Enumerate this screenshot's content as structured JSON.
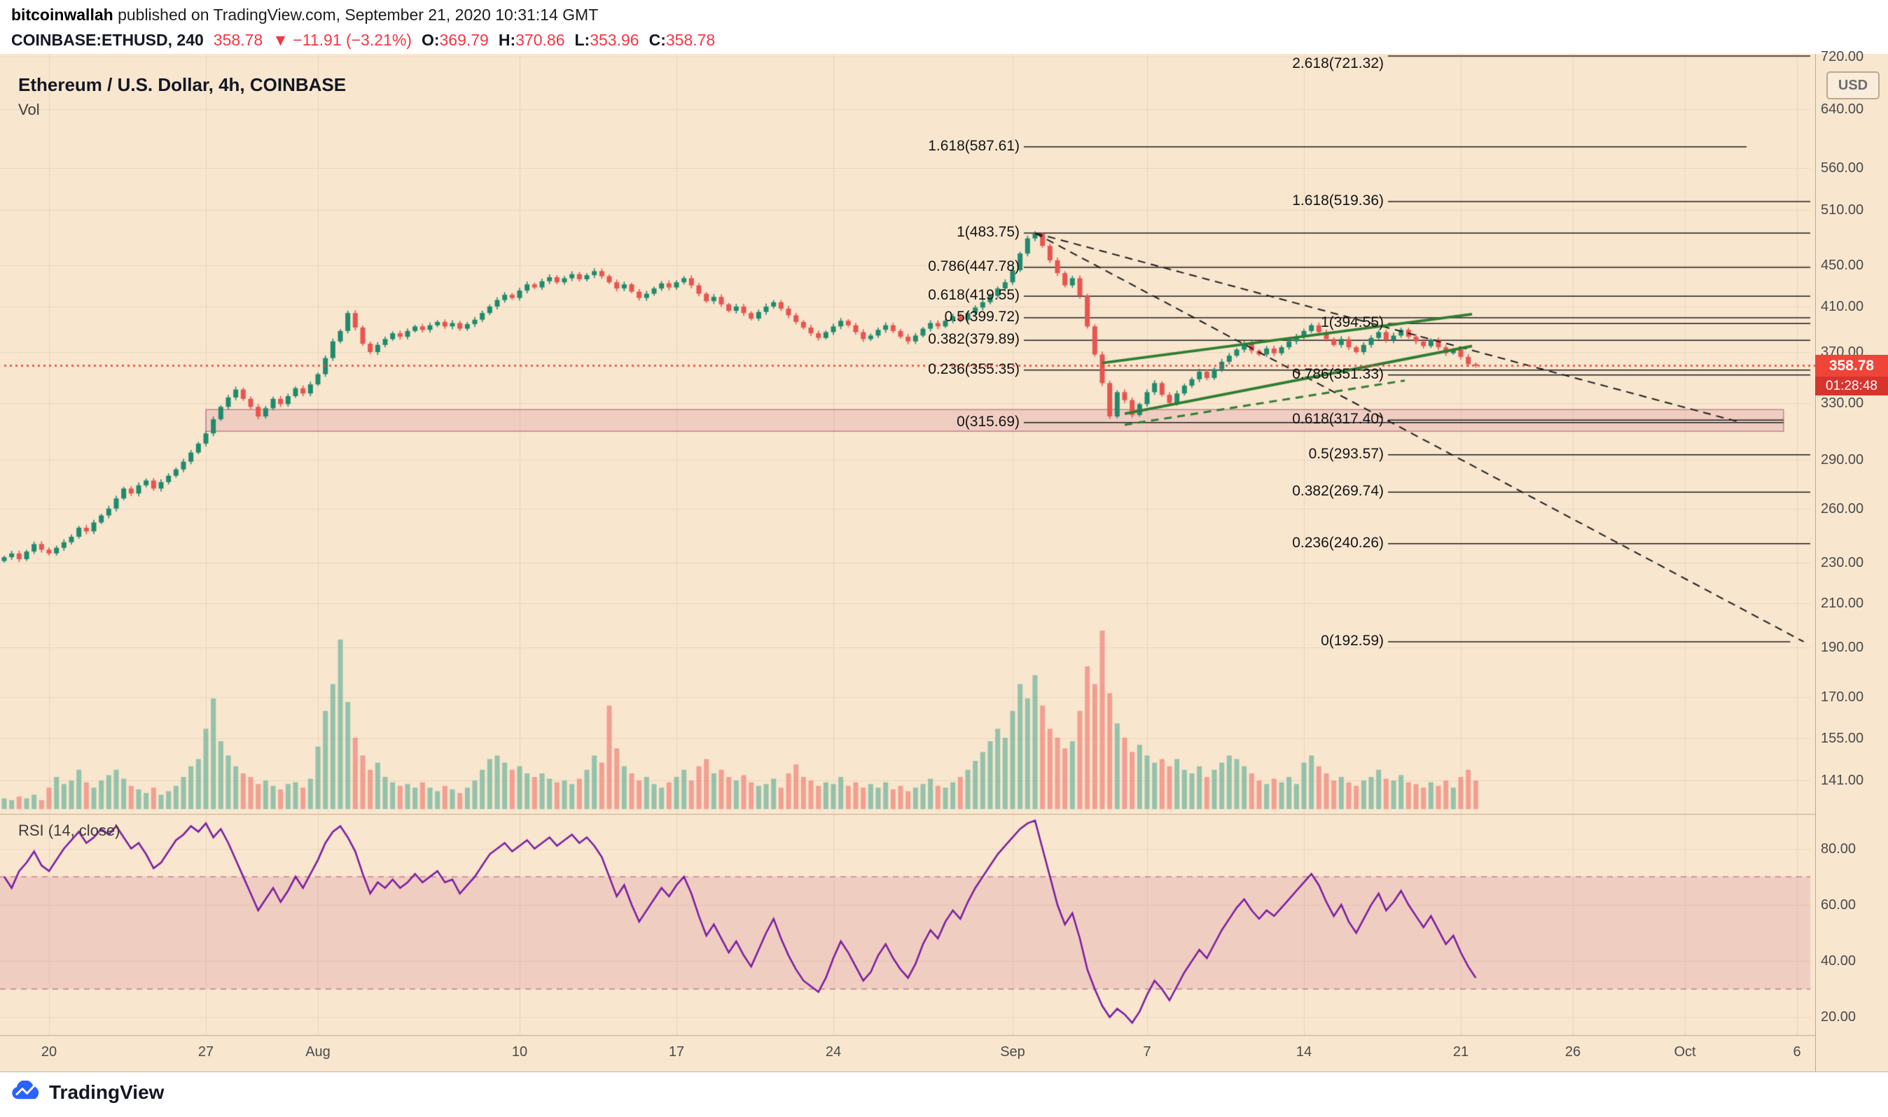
{
  "header": {
    "author": "bitcoinwallah",
    "published": " published on TradingView.com, September 21, 2020 10:31:14 GMT",
    "symbol": "COINBASE:ETHUSD, 240",
    "last": "358.78",
    "change": "▼ −11.91 (−3.21%)",
    "ohlc": [
      {
        "label": "O:",
        "value": "369.79"
      },
      {
        "label": "H:",
        "value": "370.86"
      },
      {
        "label": "L:",
        "value": "353.96"
      },
      {
        "label": "C:",
        "value": "358.78"
      }
    ]
  },
  "legend": {
    "title": "Ethereum / U.S. Dollar, 4h, COINBASE",
    "vol": "Vol",
    "rsi": "RSI (14, close)"
  },
  "axis": {
    "currency_button": "USD",
    "price_ticks": [
      "720.00",
      "640.00",
      "560.00",
      "510.00",
      "450.00",
      "410.00",
      "370.00",
      "330.00",
      "290.00",
      "260.00",
      "230.00",
      "210.00",
      "190.00",
      "170.00",
      "155.00",
      "141.00"
    ],
    "rsi_ticks": [
      "80.00",
      "60.00",
      "40.00",
      "20.00"
    ],
    "time_ticks": [
      {
        "label": "20",
        "t": 2
      },
      {
        "label": "27",
        "t": 9
      },
      {
        "label": "Aug",
        "t": 14
      },
      {
        "label": "10",
        "t": 23
      },
      {
        "label": "17",
        "t": 30
      },
      {
        "label": "24",
        "t": 37
      },
      {
        "label": "Sep",
        "t": 45
      },
      {
        "label": "7",
        "t": 51
      },
      {
        "label": "14",
        "t": 58
      },
      {
        "label": "21",
        "t": 65
      },
      {
        "label": "26",
        "t": 70
      },
      {
        "label": "Oct",
        "t": 75
      },
      {
        "label": "6",
        "t": 80
      }
    ]
  },
  "price_label": {
    "value": "358.78",
    "countdown": "01:28:48"
  },
  "footer": {
    "brand": "TradingView"
  },
  "chart_data": {
    "type": "candlestick",
    "title": "Ethereum / U.S. Dollar, 4h, COINBASE",
    "symbol": "ETHUSD",
    "interval": "4h",
    "scale": "log",
    "price_axis_range": [
      141,
      720
    ],
    "rsi_axis_range": [
      20,
      80
    ],
    "start_date": "2020-07-18",
    "end_date": "2020-09-21",
    "points_per_day": 3,
    "last_price": 358.78,
    "close_path": [
      233,
      235,
      232,
      236,
      240,
      237,
      235,
      238,
      241,
      244,
      249,
      247,
      252,
      256,
      260,
      266,
      272,
      269,
      274,
      277,
      272,
      276,
      280,
      284,
      289,
      295,
      301,
      308,
      318,
      327,
      334,
      340,
      333,
      327,
      320,
      326,
      333,
      329,
      335,
      341,
      337,
      344,
      352,
      365,
      379,
      388,
      404,
      391,
      377,
      370,
      376,
      381,
      386,
      383,
      388,
      392,
      389,
      393,
      396,
      392,
      395,
      390,
      394,
      398,
      404,
      410,
      416,
      421,
      418,
      425,
      431,
      428,
      434,
      438,
      433,
      437,
      441,
      436,
      440,
      444,
      439,
      433,
      427,
      431,
      424,
      418,
      422,
      427,
      432,
      428,
      433,
      437,
      430,
      422,
      415,
      419,
      412,
      406,
      410,
      404,
      399,
      405,
      410,
      414,
      408,
      402,
      396,
      391,
      386,
      382,
      387,
      392,
      397,
      393,
      387,
      381,
      384,
      389,
      393,
      388,
      383,
      379,
      384,
      390,
      395,
      392,
      397,
      401,
      398,
      404,
      409,
      414,
      420,
      427,
      433,
      445,
      462,
      478,
      483,
      470,
      455,
      442,
      430,
      437,
      420,
      392,
      368,
      345,
      320,
      338,
      332,
      321,
      329,
      338,
      345,
      336,
      330,
      337,
      343,
      348,
      354,
      349,
      356,
      362,
      367,
      372,
      377,
      371,
      368,
      373,
      369,
      374,
      379,
      383,
      388,
      393,
      387,
      381,
      376,
      381,
      374,
      370,
      376,
      382,
      387,
      380,
      384,
      389,
      383,
      379,
      375,
      380,
      374,
      369,
      372,
      366,
      360,
      358.78
    ],
    "volume": [
      6,
      5,
      7,
      6,
      8,
      5,
      12,
      18,
      14,
      16,
      22,
      15,
      12,
      16,
      19,
      22,
      17,
      13,
      11,
      9,
      12,
      8,
      10,
      13,
      18,
      24,
      28,
      45,
      62,
      38,
      30,
      24,
      20,
      18,
      14,
      16,
      13,
      11,
      14,
      15,
      12,
      17,
      35,
      55,
      70,
      95,
      60,
      40,
      30,
      22,
      26,
      18,
      15,
      13,
      14,
      12,
      15,
      12,
      10,
      13,
      11,
      9,
      12,
      16,
      22,
      28,
      30,
      26,
      22,
      24,
      20,
      18,
      20,
      17,
      15,
      16,
      14,
      17,
      22,
      30,
      26,
      58,
      34,
      24,
      20,
      16,
      18,
      14,
      12,
      15,
      18,
      22,
      16,
      24,
      28,
      20,
      22,
      18,
      16,
      19,
      15,
      13,
      14,
      17,
      12,
      20,
      25,
      18,
      16,
      13,
      15,
      14,
      18,
      13,
      15,
      12,
      14,
      12,
      15,
      11,
      13,
      10,
      12,
      14,
      17,
      13,
      12,
      15,
      18,
      22,
      27,
      32,
      38,
      45,
      40,
      55,
      70,
      62,
      75,
      58,
      45,
      40,
      34,
      38,
      55,
      80,
      70,
      100,
      65,
      48,
      40,
      32,
      36,
      30,
      26,
      28,
      24,
      28,
      22,
      20,
      24,
      18,
      22,
      26,
      30,
      28,
      24,
      20,
      16,
      14,
      17,
      15,
      18,
      14,
      26,
      30,
      24,
      20,
      16,
      18,
      15,
      13,
      16,
      18,
      22,
      17,
      16,
      19,
      15,
      14,
      12,
      15,
      13,
      16,
      12,
      18,
      22,
      16
    ],
    "rsi": [
      70,
      66,
      72,
      75,
      79,
      74,
      72,
      76,
      80,
      83,
      86,
      82,
      84,
      87,
      85,
      88,
      84,
      80,
      82,
      78,
      73,
      75,
      79,
      83,
      85,
      88,
      86,
      89,
      84,
      87,
      82,
      76,
      70,
      64,
      58,
      62,
      66,
      61,
      65,
      70,
      66,
      71,
      76,
      82,
      86,
      88,
      84,
      79,
      71,
      64,
      68,
      66,
      69,
      66,
      68,
      71,
      68,
      70,
      72,
      68,
      69,
      64,
      67,
      70,
      74,
      78,
      80,
      82,
      79,
      81,
      83,
      80,
      82,
      84,
      81,
      83,
      85,
      82,
      84,
      81,
      77,
      70,
      63,
      67,
      60,
      54,
      58,
      62,
      66,
      63,
      67,
      70,
      64,
      56,
      49,
      53,
      48,
      43,
      47,
      42,
      38,
      44,
      50,
      55,
      48,
      42,
      37,
      33,
      31,
      29,
      34,
      41,
      47,
      43,
      38,
      33,
      36,
      42,
      46,
      41,
      37,
      34,
      39,
      46,
      51,
      48,
      54,
      58,
      55,
      61,
      66,
      70,
      74,
      78,
      81,
      84,
      87,
      89,
      90,
      80,
      70,
      60,
      53,
      57,
      48,
      37,
      30,
      24,
      20,
      23,
      21,
      18,
      22,
      28,
      33,
      30,
      26,
      31,
      36,
      40,
      44,
      41,
      46,
      51,
      55,
      59,
      62,
      58,
      55,
      58,
      56,
      59,
      62,
      65,
      68,
      71,
      67,
      61,
      56,
      60,
      54,
      50,
      55,
      60,
      64,
      58,
      61,
      65,
      60,
      56,
      52,
      56,
      51,
      46,
      49,
      43,
      38,
      34
    ],
    "rsi_band": {
      "upper": 70,
      "lower": 30
    },
    "support_zone": {
      "t_from": 9.0,
      "t_to": 79.4,
      "price_top": 325,
      "price_bottom": 309.5
    },
    "fib_retracements": [
      {
        "name": "fib-jul-rally-retracement",
        "levels": [
          {
            "label": "1.618(587.61)",
            "price": 587.61,
            "end_t": 77.75
          },
          {
            "label": "1(483.75)",
            "price": 483.75
          },
          {
            "label": "0.786(447.78)",
            "price": 447.78
          },
          {
            "label": "0.618(419.55)",
            "price": 419.55
          },
          {
            "label": "0.5(399.72)",
            "price": 399.72
          },
          {
            "label": "0.382(379.89)",
            "price": 379.89
          },
          {
            "label": "0.236(355.35)",
            "price": 355.35
          },
          {
            "label": "0(315.69)",
            "price": 315.69,
            "end_t": 79.4
          }
        ]
      },
      {
        "name": "fib-projected-decline",
        "levels": [
          {
            "label": "2.618(721.32)",
            "price": 721.32
          },
          {
            "label": "1.618(519.36)",
            "price": 519.36
          },
          {
            "label": "1(394.55)",
            "price": 394.55
          },
          {
            "label": "0.786(351.33)",
            "price": 351.33
          },
          {
            "label": "0.618(317.40)",
            "price": 317.4,
            "end_t": 79.4
          },
          {
            "label": "0.5(293.57)",
            "price": 293.57
          },
          {
            "label": "0.382(269.74)",
            "price": 269.74
          },
          {
            "label": "0.236(240.26)",
            "price": 240.26
          },
          {
            "label": "0(192.59)",
            "price": 192.59,
            "end_t": 79.7
          }
        ]
      }
    ],
    "trendlines": [
      {
        "name": "descending-trendline-to-support",
        "from_t": 46,
        "from_price": 483.75,
        "to_t": 77.5,
        "to_price": 315.7,
        "style": "dashed",
        "color": "#1c1c1c",
        "width": 2
      },
      {
        "name": "descending-trendline-projection",
        "from_t": 46,
        "from_price": 483.75,
        "to_t": 80.3,
        "to_price": 192.59,
        "style": "dashed",
        "color": "#1c1c1c",
        "width": 2
      },
      {
        "name": "rising-wedge-upper",
        "from_t": 49,
        "from_price": 361,
        "to_t": 65.5,
        "to_price": 403,
        "style": "solid",
        "color": "#2e7d32",
        "width": 4
      },
      {
        "name": "rising-wedge-lower",
        "from_t": 50,
        "from_price": 322,
        "to_t": 65.5,
        "to_price": 375,
        "style": "solid",
        "color": "#2e7d32",
        "width": 4
      },
      {
        "name": "wedge-inner-dashed",
        "from_t": 50,
        "from_price": 314,
        "to_t": 62.5,
        "to_price": 347,
        "style": "dashed",
        "color": "#2e7d32",
        "width": 3
      }
    ],
    "colors": {
      "background": "#f8e6cf",
      "candle_up": "#1f8a6d",
      "candle_down": "#e8544e",
      "volume_up": "rgba(82,170,146,0.6)",
      "volume_down": "rgba(239,112,104,0.6)",
      "rsi_line": "#7b1fa2",
      "band_fill": "rgba(190,60,110,0.14)",
      "band_edge": "rgba(160,55,100,0.55)",
      "fib_line": "#1c1c1c",
      "current_price": "#ef4438",
      "grid": "rgba(120,85,40,0.10)"
    }
  }
}
